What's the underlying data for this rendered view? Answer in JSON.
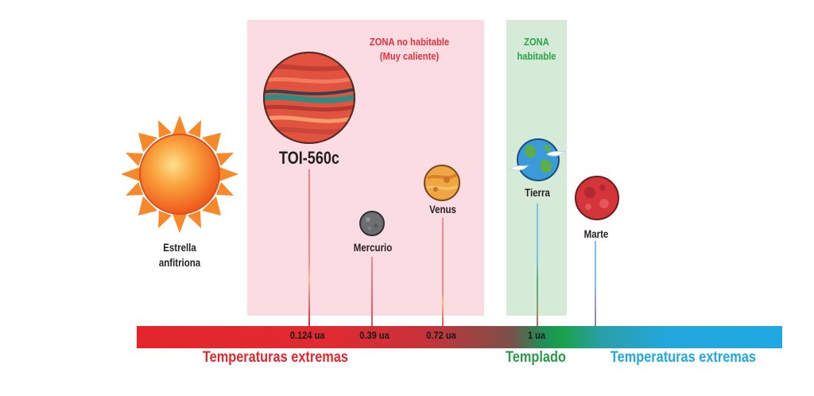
{
  "zones": {
    "hot": {
      "title_line1": "ZONA no habitable",
      "title_line2": "(Muy caliente)",
      "color": "#e8323c"
    },
    "habitable": {
      "title_line1": "ZONA",
      "title_line2": "habitable",
      "color": "#27a548"
    }
  },
  "star": {
    "label_line1": "Estrella",
    "label_line2": "anfitriona"
  },
  "planets": [
    {
      "name": "TOI-560c",
      "distance": "0.124 ua"
    },
    {
      "name": "Mercurio",
      "distance": "0.39 ua"
    },
    {
      "name": "Venus",
      "distance": "0.72 ua"
    },
    {
      "name": "Tierra",
      "distance": "1 ua"
    },
    {
      "name": "Marte",
      "distance": ""
    }
  ],
  "scale": {
    "left_text": "Temperaturas extremas",
    "middle_text": "Templado",
    "right_text": "Temperaturas extremas",
    "colors": {
      "left": "#e4262c",
      "middle": "#2a9a48",
      "right": "#1fa8e2"
    }
  }
}
